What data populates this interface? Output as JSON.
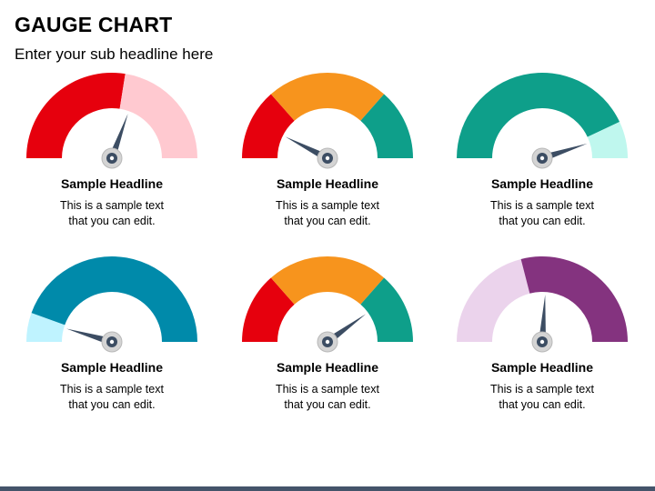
{
  "header": {
    "title": "GAUGE CHART",
    "subtitle": "Enter your sub headline here"
  },
  "gauges": [
    {
      "headline": "Sample Headline",
      "line1": "This is a sample text",
      "line2": "that you can edit.",
      "segments": [
        {
          "from": 0,
          "to": 0.55,
          "color": "#e6000d"
        },
        {
          "from": 0.55,
          "to": 1.0,
          "color": "#ffc9d0"
        }
      ],
      "needle": 0.61
    },
    {
      "headline": "Sample Headline",
      "line1": "This is a sample text",
      "line2": "that you can edit.",
      "segments": [
        {
          "from": 0,
          "to": 0.27,
          "color": "#e6000d"
        },
        {
          "from": 0.27,
          "to": 0.73,
          "color": "#f7941d"
        },
        {
          "from": 0.73,
          "to": 1.0,
          "color": "#0e9f8a"
        }
      ],
      "needle": 0.15
    },
    {
      "headline": "Sample Headline",
      "line1": "This is a sample text",
      "line2": "that you can edit.",
      "segments": [
        {
          "from": 0,
          "to": 0.86,
          "color": "#0e9f8a"
        },
        {
          "from": 0.86,
          "to": 1.0,
          "color": "#bff7ee"
        }
      ],
      "needle": 0.9
    },
    {
      "headline": "Sample Headline",
      "line1": "This is a sample text",
      "line2": "that you can edit.",
      "segments": [
        {
          "from": 0,
          "to": 0.11,
          "color": "#bff3ff"
        },
        {
          "from": 0.11,
          "to": 1.0,
          "color": "#008aaa"
        }
      ],
      "needle": 0.09
    },
    {
      "headline": "Sample Headline",
      "line1": "This is a sample text",
      "line2": "that you can edit.",
      "segments": [
        {
          "from": 0,
          "to": 0.27,
          "color": "#e6000d"
        },
        {
          "from": 0.27,
          "to": 0.73,
          "color": "#f7941d"
        },
        {
          "from": 0.73,
          "to": 1.0,
          "color": "#0e9f8a"
        }
      ],
      "needle": 0.8
    },
    {
      "headline": "Sample Headline",
      "line1": "This is a sample text",
      "line2": "that you can edit.",
      "segments": [
        {
          "from": 0,
          "to": 0.42,
          "color": "#ebd3ec"
        },
        {
          "from": 0.42,
          "to": 1.0,
          "color": "#84337f"
        }
      ],
      "needle": 0.52
    }
  ]
}
